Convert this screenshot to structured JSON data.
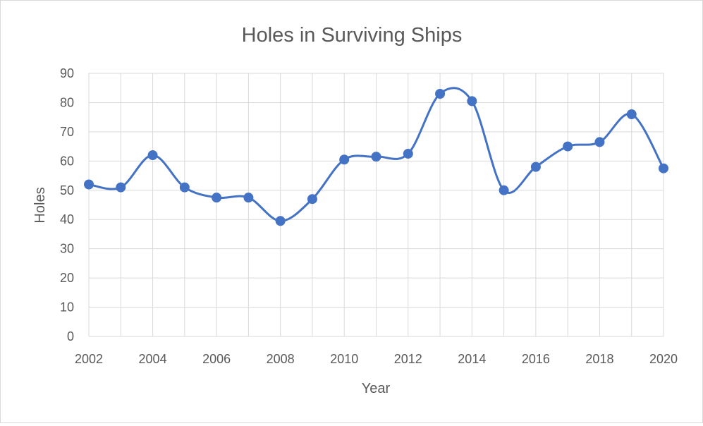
{
  "chart_data": {
    "type": "line",
    "title": "Holes in Surviving Ships",
    "xlabel": "Year",
    "ylabel": "Holes",
    "xlim": [
      2002,
      2020
    ],
    "ylim": [
      0,
      90
    ],
    "grid": true,
    "smooth": true,
    "x_ticks": [
      2002,
      2004,
      2006,
      2008,
      2010,
      2012,
      2014,
      2016,
      2018,
      2020
    ],
    "y_ticks": [
      0,
      10,
      20,
      30,
      40,
      50,
      60,
      70,
      80,
      90
    ],
    "series": [
      {
        "color": "#4472c4",
        "x": [
          2002,
          2003,
          2004,
          2005,
          2006,
          2007,
          2008,
          2009,
          2010,
          2011,
          2012,
          2013,
          2014,
          2015,
          2016,
          2017,
          2018,
          2019,
          2020
        ],
        "values": [
          52,
          51,
          62,
          51,
          47.5,
          47.5,
          39.5,
          47,
          60.5,
          61.5,
          62.5,
          83,
          80.5,
          50,
          58,
          65,
          66.5,
          76,
          57.5
        ]
      }
    ]
  }
}
